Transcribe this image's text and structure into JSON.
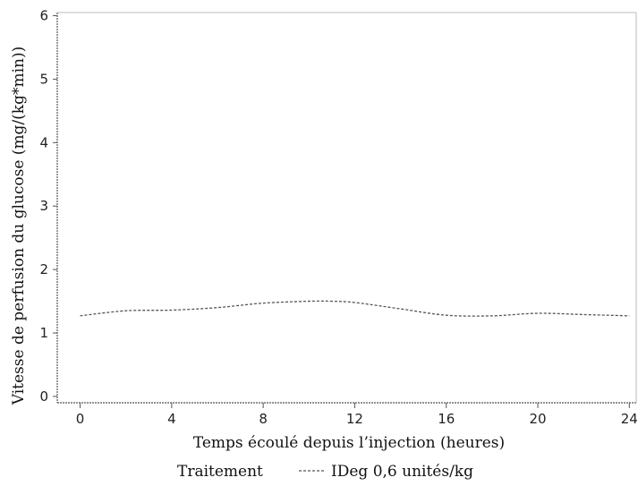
{
  "chart_data": {
    "type": "line",
    "title": "",
    "xlabel": "Temps écoulé depuis l’injection (heures)",
    "ylabel": "Vitesse de perfusion du glucose (mg/(kg*min))",
    "xlim": [
      -1,
      24.3
    ],
    "ylim": [
      -0.1,
      6.05
    ],
    "xticks": [
      0,
      4,
      8,
      12,
      16,
      20,
      24
    ],
    "yticks": [
      0,
      1,
      2,
      3,
      4,
      5,
      6
    ],
    "grid": false,
    "legend": {
      "title": "Traitement",
      "position": "bottom"
    },
    "series": [
      {
        "name": "IDeg 0,6 unités/kg",
        "line_style": "dashed",
        "color": "#555555",
        "x": [
          0,
          2,
          4,
          6,
          8,
          10,
          11,
          12,
          14,
          16,
          18,
          20,
          22,
          24
        ],
        "y": [
          1.27,
          1.35,
          1.36,
          1.4,
          1.47,
          1.5,
          1.5,
          1.48,
          1.38,
          1.28,
          1.27,
          1.31,
          1.29,
          1.27
        ]
      }
    ]
  }
}
